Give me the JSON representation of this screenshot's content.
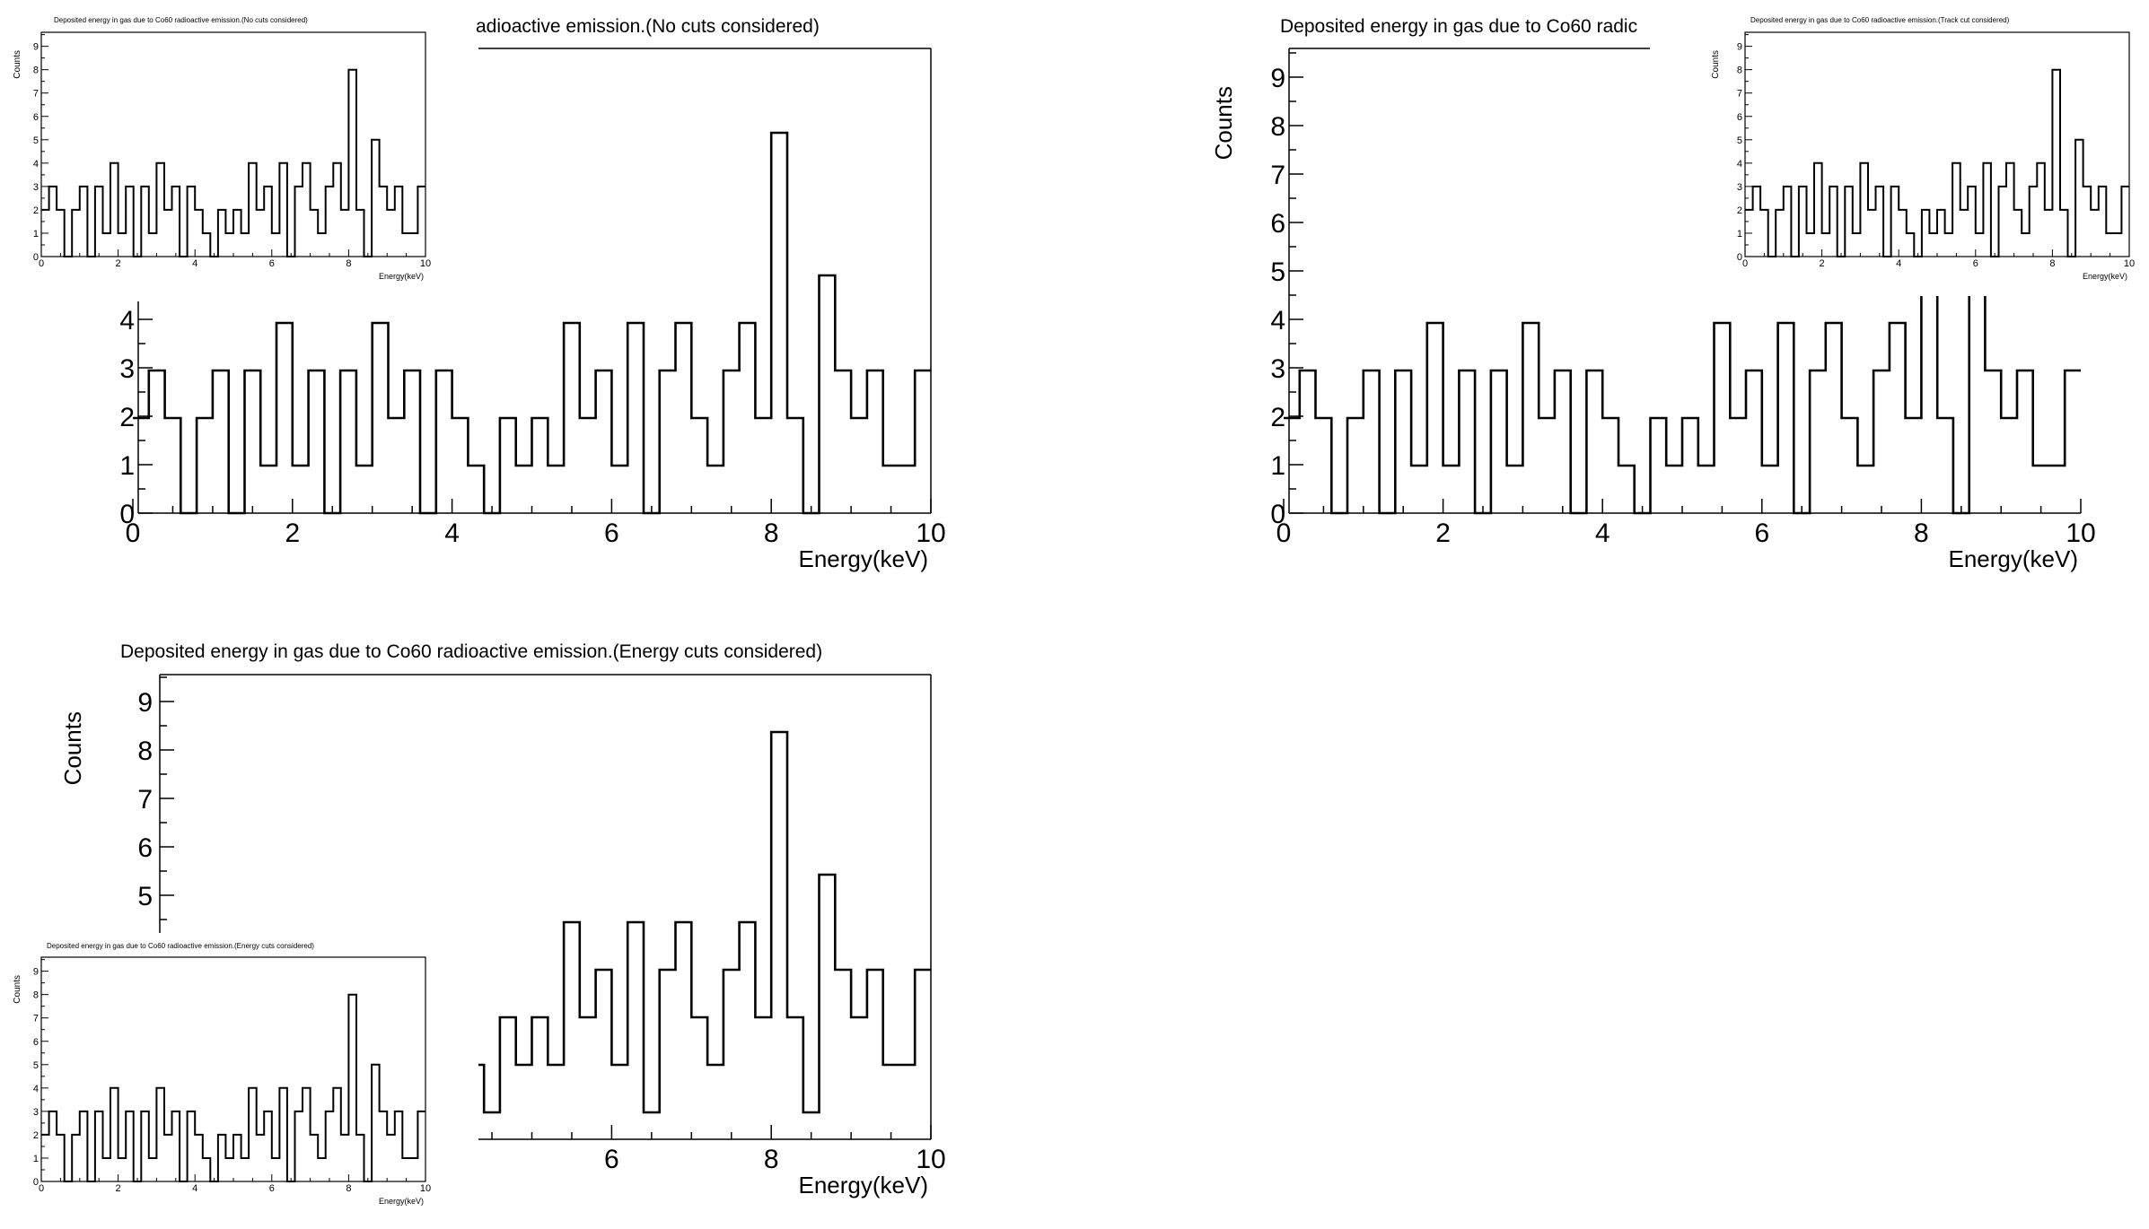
{
  "chart_data": [
    {
      "type": "histogram",
      "title": "Deposited energy in gas due to Co60 radioactive emission.(No cuts considered)",
      "xlabel": "Energy(keV)",
      "ylabel": "Counts",
      "xlim": [
        0,
        10
      ],
      "ylim": [
        0,
        9.6
      ],
      "xticks": [
        0,
        2,
        4,
        6,
        8,
        10
      ],
      "yticks": [
        0,
        1,
        2,
        3,
        4,
        5,
        6,
        7,
        8,
        9
      ],
      "bin_width": 0.2,
      "values": [
        2,
        3,
        2,
        0,
        2,
        3,
        0,
        3,
        1,
        4,
        1,
        3,
        0,
        3,
        1,
        4,
        2,
        3,
        0,
        3,
        2,
        1,
        0,
        2,
        1,
        2,
        1,
        4,
        2,
        3,
        1,
        4,
        0,
        3,
        4,
        2,
        1,
        3,
        4,
        2,
        8,
        2,
        0,
        5,
        3,
        2,
        3,
        1,
        1,
        3
      ]
    },
    {
      "type": "histogram",
      "title": "Deposited energy in gas due to Co60 radioactive emission.(Track cut considered)",
      "xlabel": "Energy(keV)",
      "ylabel": "Counts",
      "xlim": [
        0,
        10
      ],
      "ylim": [
        0,
        9.6
      ],
      "xticks": [
        0,
        2,
        4,
        6,
        8,
        10
      ],
      "yticks": [
        0,
        1,
        2,
        3,
        4,
        5,
        6,
        7,
        8,
        9
      ],
      "bin_width": 0.2,
      "values": [
        2,
        3,
        2,
        0,
        2,
        3,
        0,
        3,
        1,
        4,
        1,
        3,
        0,
        3,
        1,
        4,
        2,
        3,
        0,
        3,
        2,
        1,
        0,
        2,
        1,
        2,
        1,
        4,
        2,
        3,
        1,
        4,
        0,
        3,
        4,
        2,
        1,
        3,
        4,
        2,
        8,
        2,
        0,
        5,
        3,
        2,
        3,
        1,
        1,
        3
      ]
    },
    {
      "type": "histogram",
      "title": "Deposited energy in gas due to Co60 radioactive emission.(Energy cuts considered)",
      "xlabel": "Energy(keV)",
      "ylabel": "Counts",
      "xlim": [
        0,
        10
      ],
      "ylim": [
        0,
        9.6
      ],
      "xticks": [
        0,
        2,
        4,
        6,
        8,
        10
      ],
      "yticks": [
        0,
        1,
        2,
        3,
        4,
        5,
        6,
        7,
        8,
        9
      ],
      "bin_width": 0.2,
      "values": [
        2,
        3,
        2,
        0,
        2,
        3,
        0,
        3,
        1,
        4,
        1,
        3,
        0,
        3,
        1,
        4,
        2,
        3,
        0,
        3,
        2,
        1,
        0,
        2,
        1,
        2,
        1,
        4,
        2,
        3,
        1,
        4,
        0,
        3,
        4,
        2,
        1,
        3,
        4,
        2,
        8,
        2,
        0,
        5,
        3,
        2,
        3,
        1,
        1,
        3
      ]
    }
  ]
}
